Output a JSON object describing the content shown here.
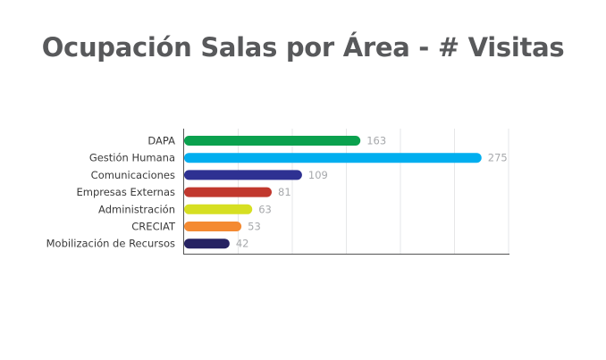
{
  "chart_data": {
    "type": "bar",
    "orientation": "horizontal",
    "title": "Ocupación Salas por Área - # Visitas",
    "xlabel": "",
    "ylabel": "",
    "xlim": [
      0,
      300
    ],
    "grid": true,
    "legend": "none",
    "categories": [
      "DAPA",
      "Gestión Humana",
      "Comunicaciones",
      "Empresas Externas",
      "Administración",
      "CRECIAT",
      "Mobilización de Recursos"
    ],
    "values": [
      163,
      275,
      109,
      81,
      63,
      53,
      42
    ],
    "colors": [
      "#0aa14e",
      "#00aeef",
      "#2e3192",
      "#c1382e",
      "#d6df22",
      "#f48a32",
      "#262262"
    ]
  }
}
